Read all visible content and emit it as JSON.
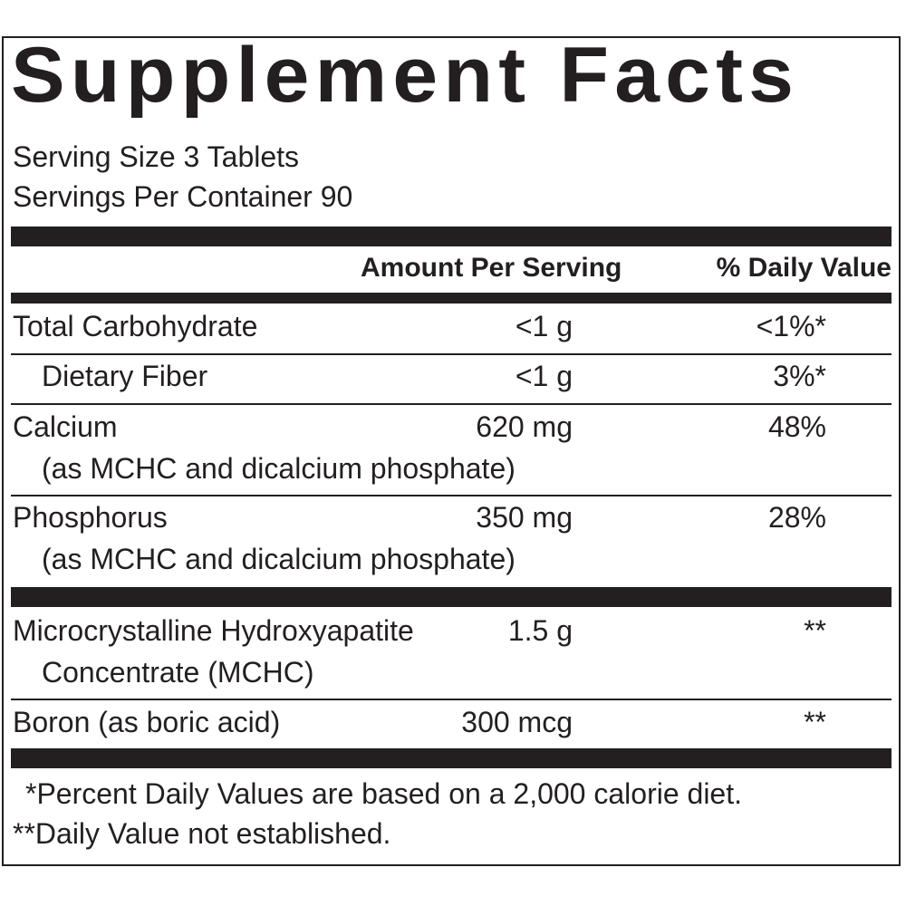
{
  "title": "Supplement Facts",
  "serving_size": "Serving Size 3 Tablets",
  "servings_per_container": "Servings Per Container 90",
  "headers": {
    "amount": "Amount Per Serving",
    "daily_value": "% Daily Value"
  },
  "rows": [
    {
      "name": "Total Carbohydrate",
      "amount": "<1 g",
      "dv": "<1%*"
    },
    {
      "name": "Dietary Fiber",
      "amount": "<1 g",
      "dv": "3%*"
    },
    {
      "name": "Calcium",
      "sub": "(as MCHC and dicalcium phosphate)",
      "amount": "620 mg",
      "dv": "48%"
    },
    {
      "name": "Phosphorus",
      "sub": "(as MCHC and dicalcium phosphate)",
      "amount": "350 mg",
      "dv": "28%"
    },
    {
      "name": "Microcrystalline Hydroxyapatite",
      "sub": "Concentrate (MCHC)",
      "amount": "1.5 g",
      "dv": "**"
    },
    {
      "name": "Boron (as boric acid)",
      "amount": "300 mcg",
      "dv": "**"
    }
  ],
  "footnotes": [
    "*Percent Daily Values are based on a 2,000 calorie diet.",
    "**Daily Value not established."
  ],
  "colors": {
    "ink": "#231f20",
    "background": "#ffffff"
  }
}
